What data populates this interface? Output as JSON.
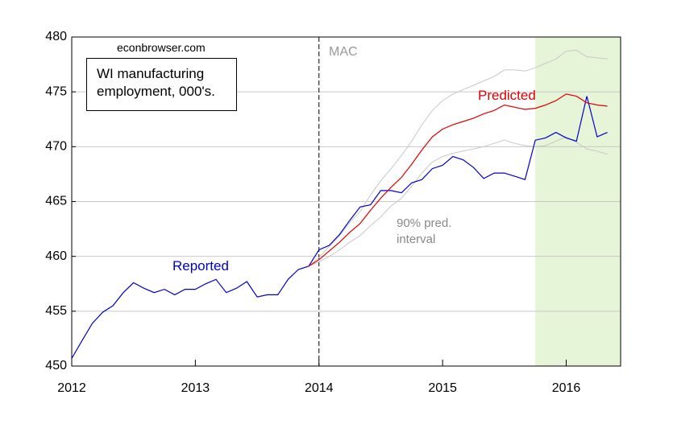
{
  "chart_data": {
    "type": "line",
    "title": "WI manufacturing employment, 000's.",
    "source": "econbrowser.com",
    "vline": {
      "x": 2014,
      "label": "MAC",
      "color": "#000000"
    },
    "shade": {
      "from": 2015.75,
      "color": "#e6f4d8"
    },
    "xlim": [
      2012,
      2016.44
    ],
    "xticks": [
      2012,
      2013,
      2014,
      2015,
      2016
    ],
    "ylim": [
      450,
      480
    ],
    "yticks": [
      450,
      455,
      460,
      465,
      470,
      475,
      480
    ],
    "grid": true,
    "series": [
      {
        "name": "Reported",
        "color": "#0000cc",
        "x": [
          2012,
          2012.083,
          2012.167,
          2012.25,
          2012.333,
          2012.417,
          2012.5,
          2012.583,
          2012.667,
          2012.75,
          2012.833,
          2012.917,
          2013,
          2013.083,
          2013.167,
          2013.25,
          2013.333,
          2013.417,
          2013.5,
          2013.583,
          2013.667,
          2013.75,
          2013.833,
          2013.917,
          2014,
          2014.083,
          2014.167,
          2014.25,
          2014.333,
          2014.417,
          2014.5,
          2014.583,
          2014.667,
          2014.75,
          2014.833,
          2014.917,
          2015,
          2015.083,
          2015.167,
          2015.25,
          2015.333,
          2015.417,
          2015.5,
          2015.583,
          2015.667,
          2015.75,
          2015.833,
          2015.917,
          2016,
          2016.083,
          2016.167,
          2016.25,
          2016.333
        ],
        "values": [
          450.7,
          452.3,
          453.9,
          454.9,
          455.5,
          456.7,
          457.6,
          457.1,
          456.7,
          457.0,
          456.5,
          457.0,
          457.0,
          457.5,
          457.9,
          456.7,
          457.1,
          457.7,
          456.3,
          456.5,
          456.5,
          457.9,
          458.8,
          459.1,
          460.6,
          461.0,
          462.0,
          463.3,
          464.5,
          464.7,
          466.0,
          466.0,
          465.8,
          466.7,
          467.0,
          468.0,
          468.3,
          469.1,
          468.8,
          468.1,
          467.1,
          467.6,
          467.6,
          467.3,
          467.0,
          470.6,
          470.8,
          471.3,
          470.8,
          470.5,
          474.6,
          470.9,
          471.3
        ]
      },
      {
        "name": "Predicted",
        "color": "#e00000",
        "x": [
          2013.917,
          2014,
          2014.083,
          2014.167,
          2014.25,
          2014.333,
          2014.417,
          2014.5,
          2014.583,
          2014.667,
          2014.75,
          2014.833,
          2014.917,
          2015,
          2015.083,
          2015.167,
          2015.25,
          2015.333,
          2015.417,
          2015.5,
          2015.583,
          2015.667,
          2015.75,
          2015.833,
          2015.917,
          2016,
          2016.083,
          2016.167,
          2016.25,
          2016.333
        ],
        "values": [
          459.1,
          459.7,
          460.5,
          461.3,
          462.2,
          463.0,
          464.2,
          465.3,
          466.3,
          467.2,
          468.4,
          469.7,
          470.9,
          471.6,
          472.0,
          472.3,
          472.6,
          473.0,
          473.3,
          473.8,
          473.6,
          473.4,
          473.5,
          473.8,
          474.2,
          474.8,
          474.6,
          474.0,
          473.8,
          473.7
        ]
      }
    ],
    "band": {
      "name": "90% pred. interval",
      "color": "#c8c8c8",
      "x": [
        2013.917,
        2014,
        2014.083,
        2014.167,
        2014.25,
        2014.333,
        2014.417,
        2014.5,
        2014.583,
        2014.667,
        2014.75,
        2014.833,
        2014.917,
        2015,
        2015.083,
        2015.167,
        2015.25,
        2015.333,
        2015.417,
        2015.5,
        2015.583,
        2015.667,
        2015.75,
        2015.833,
        2015.917,
        2016,
        2016.083,
        2016.167,
        2016.25,
        2016.333
      ],
      "upper": [
        459.1,
        459.9,
        460.9,
        461.9,
        463.1,
        464.1,
        465.6,
        466.9,
        468.0,
        469.2,
        470.5,
        472.0,
        473.3,
        474.2,
        474.8,
        475.2,
        475.6,
        476.0,
        476.4,
        477.0,
        477.0,
        476.9,
        477.2,
        477.6,
        478.0,
        478.7,
        478.8,
        478.2,
        478.1,
        478.0
      ],
      "lower": [
        459.1,
        459.5,
        460.0,
        460.6,
        461.3,
        461.9,
        462.8,
        463.6,
        464.6,
        465.3,
        466.4,
        467.6,
        468.6,
        469.1,
        469.4,
        469.6,
        469.8,
        470.0,
        470.3,
        470.6,
        470.3,
        470.1,
        470.0,
        470.1,
        470.5,
        470.9,
        470.4,
        469.8,
        469.6,
        469.3
      ]
    }
  }
}
